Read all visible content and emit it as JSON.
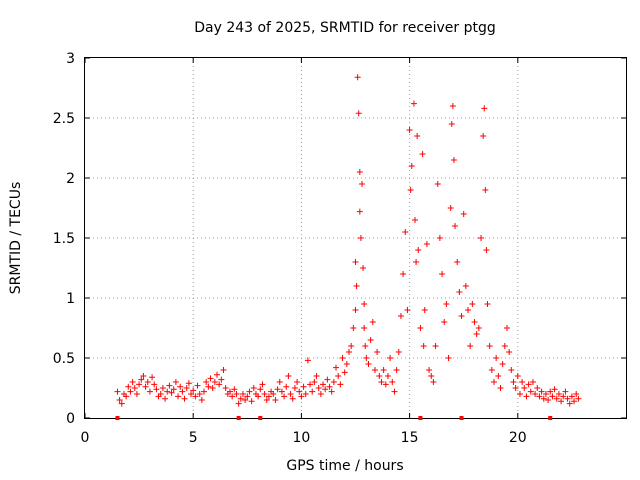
{
  "chart_data": {
    "type": "scatter",
    "title": "Day 243 of 2025, SRMTID for receiver ptgg",
    "xlabel": "GPS time / hours",
    "ylabel": "SRMTID / TECUs",
    "xlim": [
      0,
      25
    ],
    "ylim": [
      0,
      3
    ],
    "xticks": [
      0,
      5,
      10,
      15,
      20
    ],
    "yticks": [
      0,
      0.5,
      1,
      1.5,
      2,
      2.5,
      3
    ],
    "xtick_labels": [
      "0",
      "5",
      "10",
      "15",
      "20"
    ],
    "ytick_labels": [
      "0",
      "0.5",
      "1",
      "1.5",
      "2",
      "2.5",
      "3"
    ],
    "grid": true,
    "marker": "+",
    "color": "#ff0000",
    "series": [
      {
        "name": "SRMTID",
        "points": [
          [
            1.5,
            0.22
          ],
          [
            1.6,
            0.15
          ],
          [
            1.7,
            0.12
          ],
          [
            1.8,
            0.2
          ],
          [
            1.9,
            0.18
          ],
          [
            2.0,
            0.26
          ],
          [
            2.1,
            0.22
          ],
          [
            2.2,
            0.3
          ],
          [
            2.3,
            0.25
          ],
          [
            2.4,
            0.2
          ],
          [
            2.5,
            0.28
          ],
          [
            2.6,
            0.32
          ],
          [
            2.7,
            0.35
          ],
          [
            2.8,
            0.26
          ],
          [
            2.9,
            0.3
          ],
          [
            3.0,
            0.22
          ],
          [
            3.1,
            0.34
          ],
          [
            3.2,
            0.28
          ],
          [
            3.3,
            0.24
          ],
          [
            3.4,
            0.18
          ],
          [
            3.5,
            0.2
          ],
          [
            3.6,
            0.25
          ],
          [
            3.7,
            0.16
          ],
          [
            3.8,
            0.22
          ],
          [
            3.9,
            0.27
          ],
          [
            4.0,
            0.21
          ],
          [
            4.1,
            0.24
          ],
          [
            4.2,
            0.3
          ],
          [
            4.3,
            0.18
          ],
          [
            4.4,
            0.26
          ],
          [
            4.5,
            0.22
          ],
          [
            4.6,
            0.16
          ],
          [
            4.7,
            0.25
          ],
          [
            4.8,
            0.29
          ],
          [
            4.9,
            0.2
          ],
          [
            5.0,
            0.23
          ],
          [
            5.1,
            0.18
          ],
          [
            5.2,
            0.27
          ],
          [
            5.3,
            0.2
          ],
          [
            5.4,
            0.15
          ],
          [
            5.5,
            0.22
          ],
          [
            5.6,
            0.3
          ],
          [
            5.7,
            0.26
          ],
          [
            5.8,
            0.33
          ],
          [
            5.9,
            0.25
          ],
          [
            6.0,
            0.3
          ],
          [
            6.1,
            0.36
          ],
          [
            6.2,
            0.28
          ],
          [
            6.3,
            0.32
          ],
          [
            6.4,
            0.4
          ],
          [
            6.5,
            0.25
          ],
          [
            6.6,
            0.2
          ],
          [
            6.7,
            0.22
          ],
          [
            6.8,
            0.18
          ],
          [
            6.9,
            0.24
          ],
          [
            7.0,
            0.2
          ],
          [
            7.1,
            0.12
          ],
          [
            7.2,
            0.16
          ],
          [
            7.3,
            0.2
          ],
          [
            7.4,
            0.15
          ],
          [
            7.5,
            0.18
          ],
          [
            7.6,
            0.22
          ],
          [
            7.7,
            0.14
          ],
          [
            7.8,
            0.25
          ],
          [
            7.9,
            0.2
          ],
          [
            8.0,
            0.18
          ],
          [
            8.1,
            0.24
          ],
          [
            8.2,
            0.28
          ],
          [
            8.3,
            0.2
          ],
          [
            8.4,
            0.15
          ],
          [
            8.5,
            0.18
          ],
          [
            8.6,
            0.22
          ],
          [
            8.7,
            0.2
          ],
          [
            8.8,
            0.15
          ],
          [
            8.9,
            0.24
          ],
          [
            9.0,
            0.3
          ],
          [
            9.1,
            0.22
          ],
          [
            9.2,
            0.18
          ],
          [
            9.3,
            0.26
          ],
          [
            9.4,
            0.35
          ],
          [
            9.5,
            0.2
          ],
          [
            9.6,
            0.16
          ],
          [
            9.7,
            0.25
          ],
          [
            9.8,
            0.3
          ],
          [
            9.9,
            0.22
          ],
          [
            10.0,
            0.18
          ],
          [
            10.1,
            0.26
          ],
          [
            10.2,
            0.2
          ],
          [
            10.3,
            0.48
          ],
          [
            10.4,
            0.28
          ],
          [
            10.5,
            0.22
          ],
          [
            10.6,
            0.3
          ],
          [
            10.7,
            0.35
          ],
          [
            10.8,
            0.25
          ],
          [
            10.9,
            0.2
          ],
          [
            11.0,
            0.28
          ],
          [
            11.1,
            0.24
          ],
          [
            11.2,
            0.32
          ],
          [
            11.3,
            0.26
          ],
          [
            11.4,
            0.22
          ],
          [
            11.5,
            0.3
          ],
          [
            11.6,
            0.42
          ],
          [
            11.7,
            0.35
          ],
          [
            11.8,
            0.28
          ],
          [
            11.9,
            0.5
          ],
          [
            12.0,
            0.38
          ],
          [
            12.1,
            0.45
          ],
          [
            12.2,
            0.55
          ],
          [
            12.3,
            0.6
          ],
          [
            12.4,
            0.75
          ],
          [
            12.5,
            0.9
          ],
          [
            12.5,
            1.3
          ],
          [
            12.55,
            1.1
          ],
          [
            12.6,
            2.84
          ],
          [
            12.65,
            2.54
          ],
          [
            12.7,
            2.05
          ],
          [
            12.7,
            1.72
          ],
          [
            12.75,
            1.5
          ],
          [
            12.8,
            1.95
          ],
          [
            12.85,
            1.25
          ],
          [
            12.9,
            0.95
          ],
          [
            12.9,
            0.75
          ],
          [
            12.95,
            0.6
          ],
          [
            13.0,
            0.5
          ],
          [
            13.1,
            0.45
          ],
          [
            13.2,
            0.65
          ],
          [
            13.3,
            0.8
          ],
          [
            13.4,
            0.4
          ],
          [
            13.5,
            0.55
          ],
          [
            13.6,
            0.35
          ],
          [
            13.7,
            0.3
          ],
          [
            13.8,
            0.4
          ],
          [
            13.9,
            0.28
          ],
          [
            14.0,
            0.35
          ],
          [
            14.1,
            0.5
          ],
          [
            14.2,
            0.3
          ],
          [
            14.3,
            0.22
          ],
          [
            14.4,
            0.4
          ],
          [
            14.5,
            0.55
          ],
          [
            14.6,
            0.85
          ],
          [
            14.7,
            1.2
          ],
          [
            14.8,
            1.55
          ],
          [
            14.9,
            0.9
          ],
          [
            15.0,
            2.4
          ],
          [
            15.05,
            1.9
          ],
          [
            15.1,
            2.1
          ],
          [
            15.2,
            2.62
          ],
          [
            15.25,
            1.65
          ],
          [
            15.3,
            1.3
          ],
          [
            15.35,
            2.35
          ],
          [
            15.4,
            1.4
          ],
          [
            15.5,
            0.75
          ],
          [
            15.6,
            2.2
          ],
          [
            15.65,
            0.6
          ],
          [
            15.7,
            0.9
          ],
          [
            15.8,
            1.45
          ],
          [
            15.9,
            0.4
          ],
          [
            16.0,
            0.35
          ],
          [
            16.1,
            0.3
          ],
          [
            16.2,
            0.6
          ],
          [
            16.3,
            1.95
          ],
          [
            16.4,
            1.5
          ],
          [
            16.5,
            1.2
          ],
          [
            16.6,
            0.8
          ],
          [
            16.7,
            0.95
          ],
          [
            16.8,
            0.5
          ],
          [
            16.9,
            1.75
          ],
          [
            16.95,
            2.45
          ],
          [
            17.0,
            2.6
          ],
          [
            17.05,
            2.15
          ],
          [
            17.1,
            1.6
          ],
          [
            17.2,
            1.3
          ],
          [
            17.3,
            1.05
          ],
          [
            17.4,
            0.85
          ],
          [
            17.5,
            1.7
          ],
          [
            17.6,
            1.1
          ],
          [
            17.7,
            0.9
          ],
          [
            17.8,
            0.6
          ],
          [
            17.9,
            0.95
          ],
          [
            18.0,
            0.8
          ],
          [
            18.1,
            0.7
          ],
          [
            18.2,
            0.75
          ],
          [
            18.3,
            1.5
          ],
          [
            18.4,
            2.35
          ],
          [
            18.45,
            2.58
          ],
          [
            18.5,
            1.9
          ],
          [
            18.55,
            1.4
          ],
          [
            18.6,
            0.95
          ],
          [
            18.7,
            0.6
          ],
          [
            18.8,
            0.4
          ],
          [
            18.9,
            0.3
          ],
          [
            19.0,
            0.5
          ],
          [
            19.1,
            0.35
          ],
          [
            19.2,
            0.25
          ],
          [
            19.3,
            0.45
          ],
          [
            19.4,
            0.6
          ],
          [
            19.5,
            0.75
          ],
          [
            19.6,
            0.55
          ],
          [
            19.7,
            0.4
          ],
          [
            19.8,
            0.3
          ],
          [
            19.9,
            0.25
          ],
          [
            20.0,
            0.35
          ],
          [
            20.1,
            0.2
          ],
          [
            20.2,
            0.3
          ],
          [
            20.3,
            0.25
          ],
          [
            20.4,
            0.18
          ],
          [
            20.5,
            0.28
          ],
          [
            20.6,
            0.22
          ],
          [
            20.7,
            0.3
          ],
          [
            20.8,
            0.2
          ],
          [
            20.9,
            0.25
          ],
          [
            21.0,
            0.18
          ],
          [
            21.1,
            0.22
          ],
          [
            21.2,
            0.16
          ],
          [
            21.3,
            0.2
          ],
          [
            21.4,
            0.15
          ],
          [
            21.5,
            0.22
          ],
          [
            21.6,
            0.18
          ],
          [
            21.7,
            0.24
          ],
          [
            21.8,
            0.16
          ],
          [
            21.9,
            0.2
          ],
          [
            22.0,
            0.14
          ],
          [
            22.1,
            0.18
          ],
          [
            22.2,
            0.22
          ],
          [
            22.3,
            0.16
          ],
          [
            22.4,
            0.12
          ],
          [
            22.5,
            0.18
          ],
          [
            22.6,
            0.14
          ],
          [
            22.7,
            0.2
          ],
          [
            22.8,
            0.16
          ]
        ],
        "zero_markers": [
          1.5,
          7.1,
          8.1,
          15.5,
          17.4,
          21.5
        ]
      }
    ]
  }
}
